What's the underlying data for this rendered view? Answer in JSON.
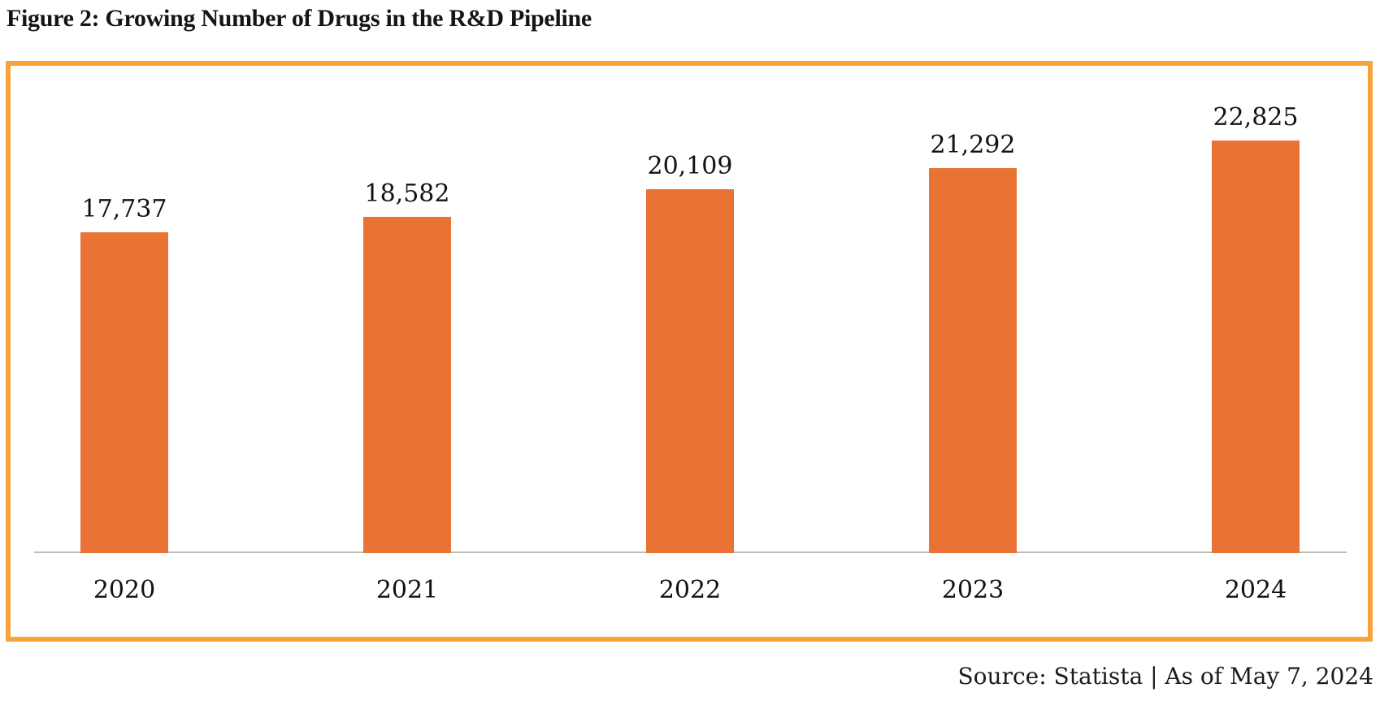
{
  "page": {
    "source": "Source: Statista | As of May 7, 2024"
  },
  "chart_data": {
    "type": "bar",
    "title": "Figure 2: Growing Number of Drugs in the R&D Pipeline",
    "categories": [
      "2020",
      "2021",
      "2022",
      "2023",
      "2024"
    ],
    "values": [
      17737,
      18582,
      20109,
      21292,
      22825
    ],
    "value_labels": [
      "17,737",
      "18,582",
      "20,109",
      "21,292",
      "22,825"
    ],
    "xlabel": "",
    "ylabel": "",
    "ylim": [
      0,
      22825
    ],
    "grid": false,
    "legend": false,
    "value_labels_shown": true,
    "colors": {
      "bar": "#e87334",
      "frame_border": "#f9a23c",
      "axis_line": "#bcbcbc",
      "text": "#141210"
    }
  }
}
